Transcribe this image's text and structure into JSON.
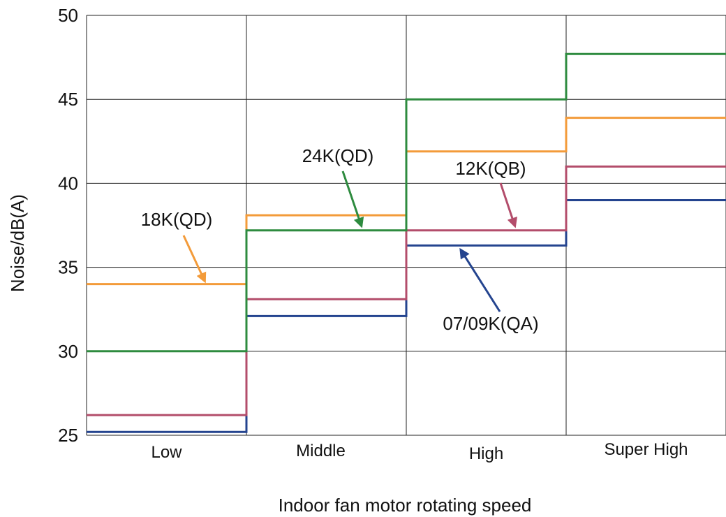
{
  "chart_data": {
    "type": "line",
    "step": true,
    "xlabel": "Indoor fan motor rotating speed",
    "ylabel": "Noise/dB(A)",
    "categories": [
      "Low",
      "Middle",
      "High",
      "Super High"
    ],
    "ylim": [
      25,
      50
    ],
    "yticks": [
      25,
      30,
      35,
      40,
      45,
      50
    ],
    "grid": true,
    "series": [
      {
        "name": "24K(QD)",
        "color": "#2e8b3f",
        "values": [
          30.0,
          37.2,
          45.0,
          47.7
        ]
      },
      {
        "name": "18K(QD)",
        "color": "#f39b3a",
        "values": [
          34.0,
          38.1,
          41.9,
          43.9
        ]
      },
      {
        "name": "12K(QB)",
        "color": "#b34d6b",
        "values": [
          26.2,
          33.1,
          37.2,
          41.0
        ]
      },
      {
        "name": "07/09K(QA)",
        "color": "#24448f",
        "values": [
          25.2,
          32.1,
          36.3,
          39.0
        ]
      }
    ],
    "annotations": [
      {
        "text": "18K(QD)",
        "series": "18K(QD)",
        "category": 0,
        "color": "#f39b3a"
      },
      {
        "text": "24K(QD)",
        "series": "24K(QD)",
        "category": 1,
        "color": "#2e8b3f"
      },
      {
        "text": "12K(QB)",
        "series": "12K(QB)",
        "category": 2,
        "color": "#b34d6b"
      },
      {
        "text": "07/09K(QA)",
        "series": "07/09K(QA)",
        "category": 2,
        "color": "#24448f"
      }
    ]
  }
}
